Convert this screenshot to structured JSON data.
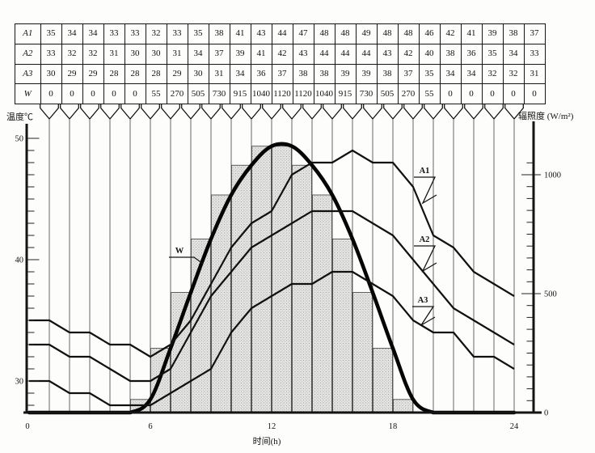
{
  "table": {
    "row_labels": [
      "A1",
      "A2",
      "A3",
      "W"
    ],
    "rows": [
      [
        35,
        34,
        34,
        33,
        33,
        32,
        33,
        35,
        38,
        41,
        43,
        44,
        47,
        48,
        48,
        49,
        48,
        48,
        46,
        42,
        41,
        39,
        38,
        37
      ],
      [
        33,
        32,
        32,
        31,
        30,
        30,
        31,
        34,
        37,
        39,
        41,
        42,
        43,
        44,
        44,
        44,
        43,
        42,
        40,
        38,
        36,
        35,
        34,
        33
      ],
      [
        30,
        29,
        29,
        28,
        28,
        28,
        29,
        30,
        31,
        34,
        36,
        37,
        38,
        38,
        39,
        39,
        38,
        37,
        35,
        34,
        34,
        32,
        32,
        31
      ],
      [
        0,
        0,
        0,
        0,
        0,
        55,
        270,
        505,
        730,
        915,
        1040,
        1120,
        1120,
        1040,
        915,
        730,
        505,
        270,
        55,
        0,
        0,
        0,
        0,
        0
      ]
    ]
  },
  "chart_data": {
    "type": "composite line + stippled bar, dual y-axis",
    "columns_hours": [
      1,
      2,
      3,
      4,
      5,
      6,
      7,
      8,
      9,
      10,
      11,
      12,
      13,
      14,
      15,
      16,
      17,
      18,
      19,
      20,
      21,
      22,
      23,
      24
    ],
    "series": [
      {
        "name": "A1",
        "axis": "temperature_left",
        "type": "line",
        "values": [
          35,
          34,
          34,
          33,
          33,
          32,
          33,
          35,
          38,
          41,
          43,
          44,
          47,
          48,
          48,
          49,
          48,
          48,
          46,
          42,
          41,
          39,
          38,
          37
        ]
      },
      {
        "name": "A2",
        "axis": "temperature_left",
        "type": "line",
        "values": [
          33,
          32,
          32,
          31,
          30,
          30,
          31,
          34,
          37,
          39,
          41,
          42,
          43,
          44,
          44,
          44,
          43,
          42,
          40,
          38,
          36,
          35,
          34,
          33
        ]
      },
      {
        "name": "A3",
        "axis": "temperature_left",
        "type": "line",
        "values": [
          30,
          29,
          29,
          28,
          28,
          28,
          29,
          30,
          31,
          34,
          36,
          37,
          38,
          38,
          39,
          39,
          38,
          37,
          35,
          34,
          34,
          32,
          32,
          31
        ]
      },
      {
        "name": "W",
        "axis": "irradiance_right",
        "type": "thick-curve-with-bars",
        "values": [
          0,
          0,
          0,
          0,
          0,
          55,
          270,
          505,
          730,
          915,
          1040,
          1120,
          1120,
          1040,
          915,
          730,
          505,
          270,
          55,
          0,
          0,
          0,
          0,
          0
        ]
      }
    ],
    "axes": {
      "left": {
        "title": "温度℃",
        "unit": "℃",
        "tick_labels": [
          "50",
          "40",
          "30"
        ],
        "tick_values": [
          50,
          40,
          30
        ],
        "minor_tick_step": 1,
        "range": [
          28,
          50
        ]
      },
      "right": {
        "title": "辐照度 (W/m²)",
        "unit": "W/m²",
        "tick_labels": [
          "1000",
          "500",
          "0"
        ],
        "tick_values": [
          1000,
          500,
          0
        ],
        "minor_tick_step": 50,
        "range": [
          0,
          1120
        ]
      },
      "x": {
        "title": "时间(h)",
        "tick_labels": [
          "0",
          "6",
          "12",
          "18",
          "24"
        ],
        "tick_values": [
          0,
          6,
          12,
          18,
          24
        ],
        "range": [
          0,
          24
        ]
      }
    },
    "curve_labels": {
      "w": "W",
      "a1": "A1",
      "a2": "A2",
      "a3": "A3"
    },
    "bar_style": "stippled gray histogram under W curve",
    "colors": {
      "ink": "#141414",
      "stipple_bg": "#e4e4e2",
      "stipple_dot": "#8f8f8f",
      "paper": "#fdfdfb"
    }
  }
}
